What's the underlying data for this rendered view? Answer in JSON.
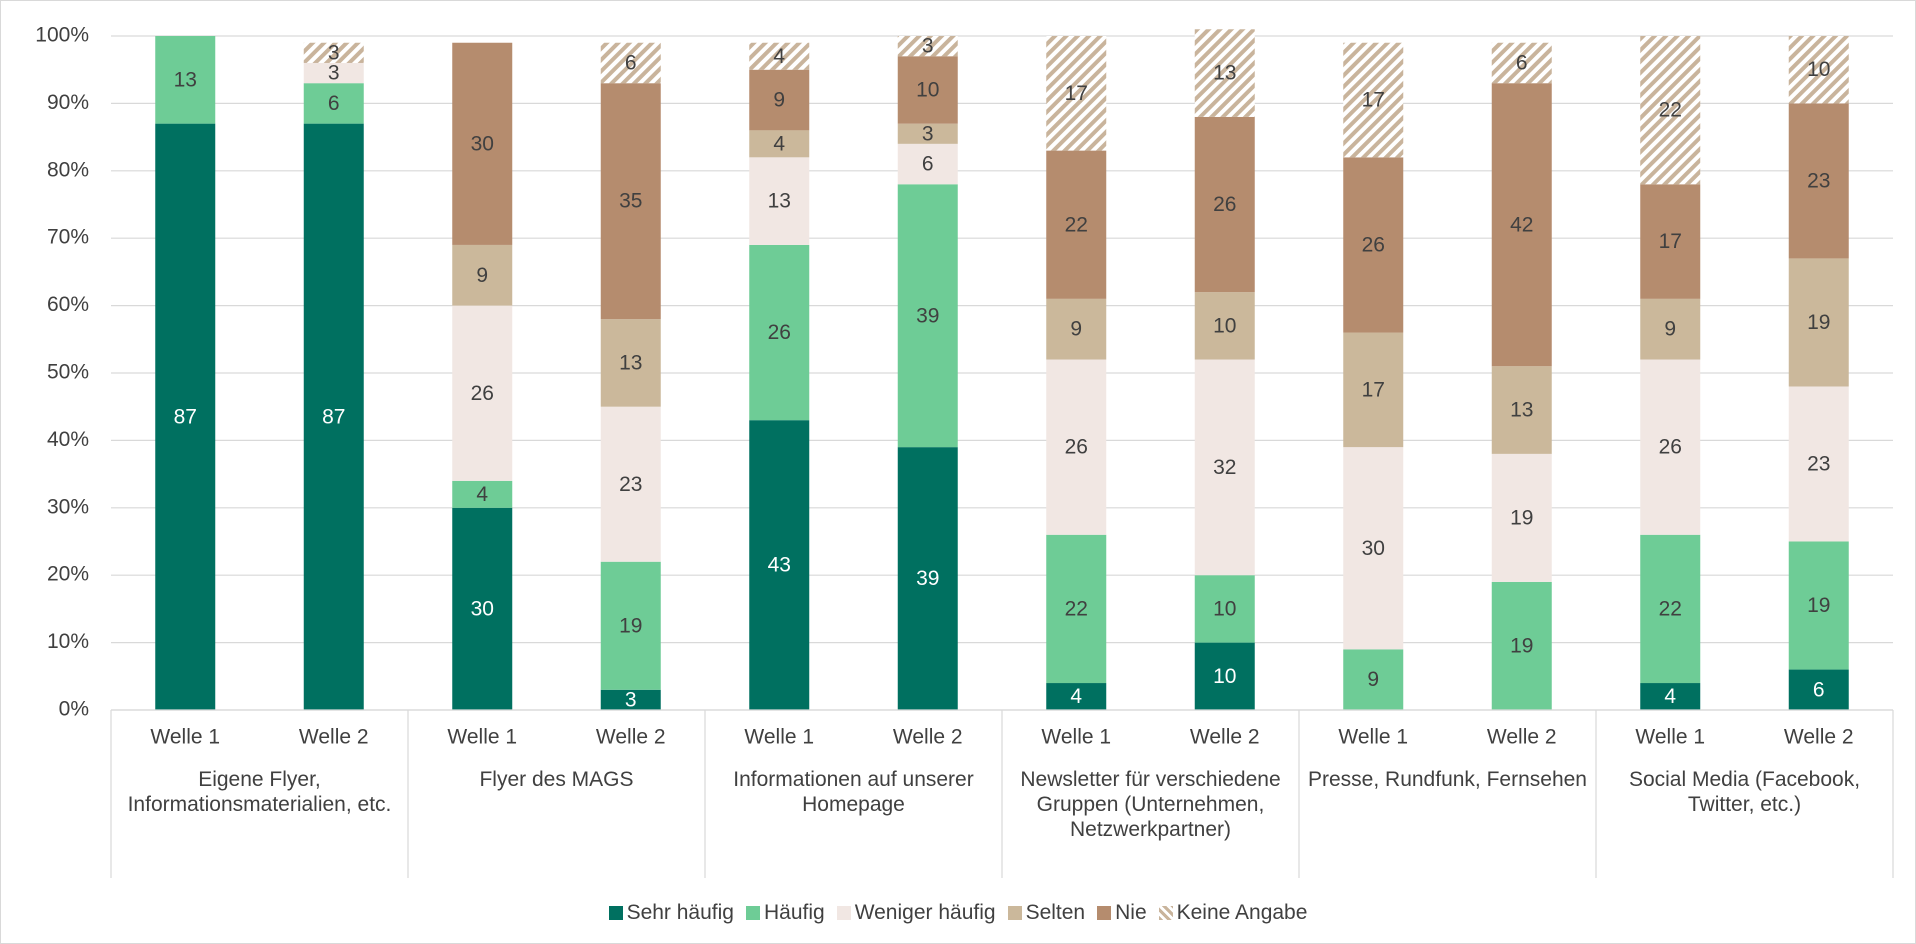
{
  "chart_data": {
    "type": "stacked_bar",
    "categories": [
      "Welle 1",
      "Welle 2",
      "Welle 1",
      "Welle 2",
      "Welle 1",
      "Welle 2",
      "Welle 1",
      "Welle 2",
      "Welle 1",
      "Welle 2",
      "Welle 1",
      "Welle 2"
    ],
    "groups": [
      "Eigene Flyer, Informationsmaterialien, etc.",
      "Flyer des MAGS",
      "Informationen auf unserer Homepage",
      "Newsletter für verschiedene Gruppen (Unternehmen, Netzwerkpartner)",
      "Presse, Rundfunk, Fernsehen",
      "Social Media (Facebook, Twitter, etc.)"
    ],
    "series": [
      {
        "name": "Sehr häufig",
        "color": "#007060",
        "label_color": "#ffffff",
        "values": [
          87,
          87,
          30,
          3,
          43,
          39,
          4,
          10,
          null,
          null,
          4,
          6
        ]
      },
      {
        "name": "Häufig",
        "color": "#6ecc96",
        "label_color": "#404040",
        "values": [
          13,
          6,
          4,
          19,
          26,
          39,
          22,
          10,
          9,
          19,
          22,
          19
        ]
      },
      {
        "name": "Weniger häufig",
        "color": "#f1e7e3",
        "label_color": "#404040",
        "values": [
          null,
          3,
          26,
          23,
          13,
          6,
          26,
          32,
          30,
          19,
          26,
          23
        ]
      },
      {
        "name": "Selten",
        "color": "#cbb89b",
        "label_color": "#404040",
        "values": [
          null,
          null,
          9,
          13,
          4,
          3,
          9,
          10,
          17,
          13,
          9,
          19
        ]
      },
      {
        "name": "Nie",
        "color": "#b58c6e",
        "label_color": "#404040",
        "values": [
          null,
          null,
          30,
          35,
          9,
          10,
          22,
          26,
          26,
          42,
          17,
          23
        ]
      },
      {
        "name": "Keine Angabe",
        "color": "#c9b49c",
        "pattern": "hatch",
        "label_color": "#404040",
        "values": [
          null,
          3,
          null,
          6,
          4,
          3,
          17,
          13,
          17,
          6,
          22,
          10
        ]
      }
    ],
    "ylim": [
      0,
      100
    ],
    "yticks": [
      {
        "value": 0,
        "label": "0%"
      },
      {
        "value": 10,
        "label": "10%"
      },
      {
        "value": 20,
        "label": "20%"
      },
      {
        "value": 30,
        "label": "30%"
      },
      {
        "value": 40,
        "label": "40%"
      },
      {
        "value": 50,
        "label": "50%"
      },
      {
        "value": 60,
        "label": "60%"
      },
      {
        "value": 70,
        "label": "70%"
      },
      {
        "value": 80,
        "label": "80%"
      },
      {
        "value": 90,
        "label": "90%"
      },
      {
        "value": 100,
        "label": "100%"
      }
    ],
    "grid": true,
    "legend": "bottom"
  }
}
